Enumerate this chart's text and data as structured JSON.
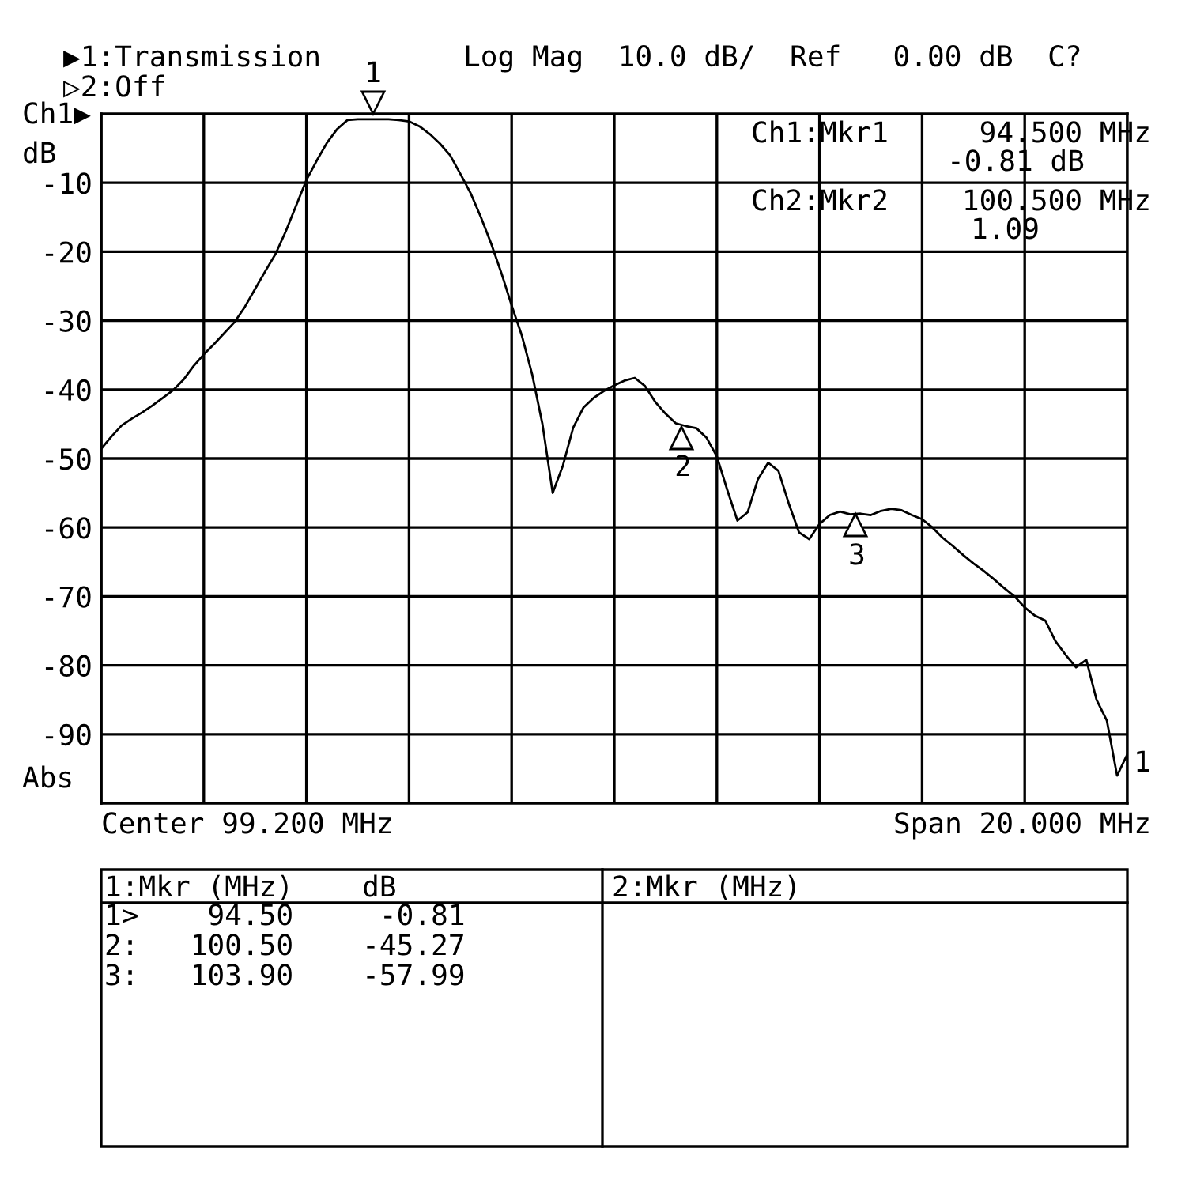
{
  "chart_data": {
    "type": "line",
    "categories": [
      null,
      null,
      null,
      null,
      null,
      null,
      null,
      null,
      null,
      null,
      null,
      null,
      null,
      null,
      null,
      null,
      null,
      null,
      null,
      null,
      null,
      null,
      null,
      null,
      null,
      null,
      null,
      null,
      null,
      null,
      null,
      null,
      null,
      null,
      null,
      null,
      null,
      null,
      null,
      null,
      null,
      null,
      null,
      null,
      null,
      null,
      null,
      null,
      null,
      null,
      null,
      null,
      null,
      null,
      null,
      null,
      null,
      null,
      null,
      null,
      null,
      null,
      null,
      null,
      null,
      null,
      null,
      null,
      null,
      null,
      null,
      null,
      null,
      null,
      null,
      null,
      null,
      null,
      null,
      null,
      null,
      null,
      null,
      null,
      null,
      null,
      null,
      null,
      null,
      null,
      null,
      null,
      null,
      null,
      null,
      null,
      null,
      null,
      null,
      null,
      null
    ],
    "series": [
      {
        "color": "#000000",
        "values": [
          -48.6,
          -46.8,
          -45.2,
          -44.2,
          -43.3,
          -42.3,
          -41.2,
          -40.1,
          -38.6,
          -36.6,
          -34.9,
          -33.4,
          -31.8,
          -30.2,
          -28.0,
          -25.4,
          -22.8,
          -20.3,
          -17.0,
          -13.3,
          -9.6,
          -6.8,
          -4.2,
          -2.2,
          -0.9,
          -0.8,
          -0.8,
          -0.8,
          -0.8,
          -0.9,
          -1.1,
          -1.8,
          -2.9,
          -4.3,
          -6.0,
          -8.7,
          -11.5,
          -15.0,
          -18.8,
          -23.1,
          -27.8,
          -32.2,
          -37.8,
          -45.0,
          -55.0,
          -51.0,
          -45.5,
          -42.6,
          -41.2,
          -40.2,
          -39.4,
          -38.7,
          -38.3,
          -39.5,
          -41.8,
          -43.5,
          -44.9,
          -45.3,
          -45.6,
          -47.0,
          -49.7,
          -54.5,
          -59.0,
          -57.8,
          -53.0,
          -50.6,
          -51.8,
          -56.5,
          -60.7,
          -61.7,
          -59.5,
          -58.2,
          -57.7,
          -58.1,
          -58.0,
          -58.2,
          -57.6,
          -57.3,
          -57.5,
          -58.2,
          -58.8,
          -60.0,
          -61.5,
          -62.7,
          -64.0,
          -65.2,
          -66.3,
          -67.5,
          -68.8,
          -70.0,
          -71.6,
          -72.8,
          -73.5,
          -76.5,
          -78.5,
          -80.3,
          -79.2,
          -85.0,
          -88.0,
          -96.0,
          -92.9
        ]
      }
    ],
    "ylim": [
      -100,
      0
    ],
    "yticks": [
      -90,
      -80,
      -70,
      -60,
      -50,
      -40,
      -30,
      -20,
      -10
    ],
    "grid": true,
    "line_style": "solid",
    "marker": "none",
    "annotations": [
      "▶1:Transmission",
      "Log Mag  10.0 dB/  Ref   0.00 dB  C?",
      "▷2:Off",
      "Ch1▶",
      "dB",
      "Abs",
      "1",
      "Center 99.200 MHz",
      "Span 20.000 MHz",
      "Ch1:Mkr1",
      "94.500 MHz",
      "-0.81 dB",
      "Ch2:Mkr2",
      "100.500 MHz",
      "1.09",
      "1:Mkr (MHz)    dB",
      "2:Mkr (MHz)",
      "1>    94.50     -0.81",
      "2:   100.50    -45.27",
      "3:   103.90    -57.99",
      "1",
      "2",
      "3"
    ]
  }
}
